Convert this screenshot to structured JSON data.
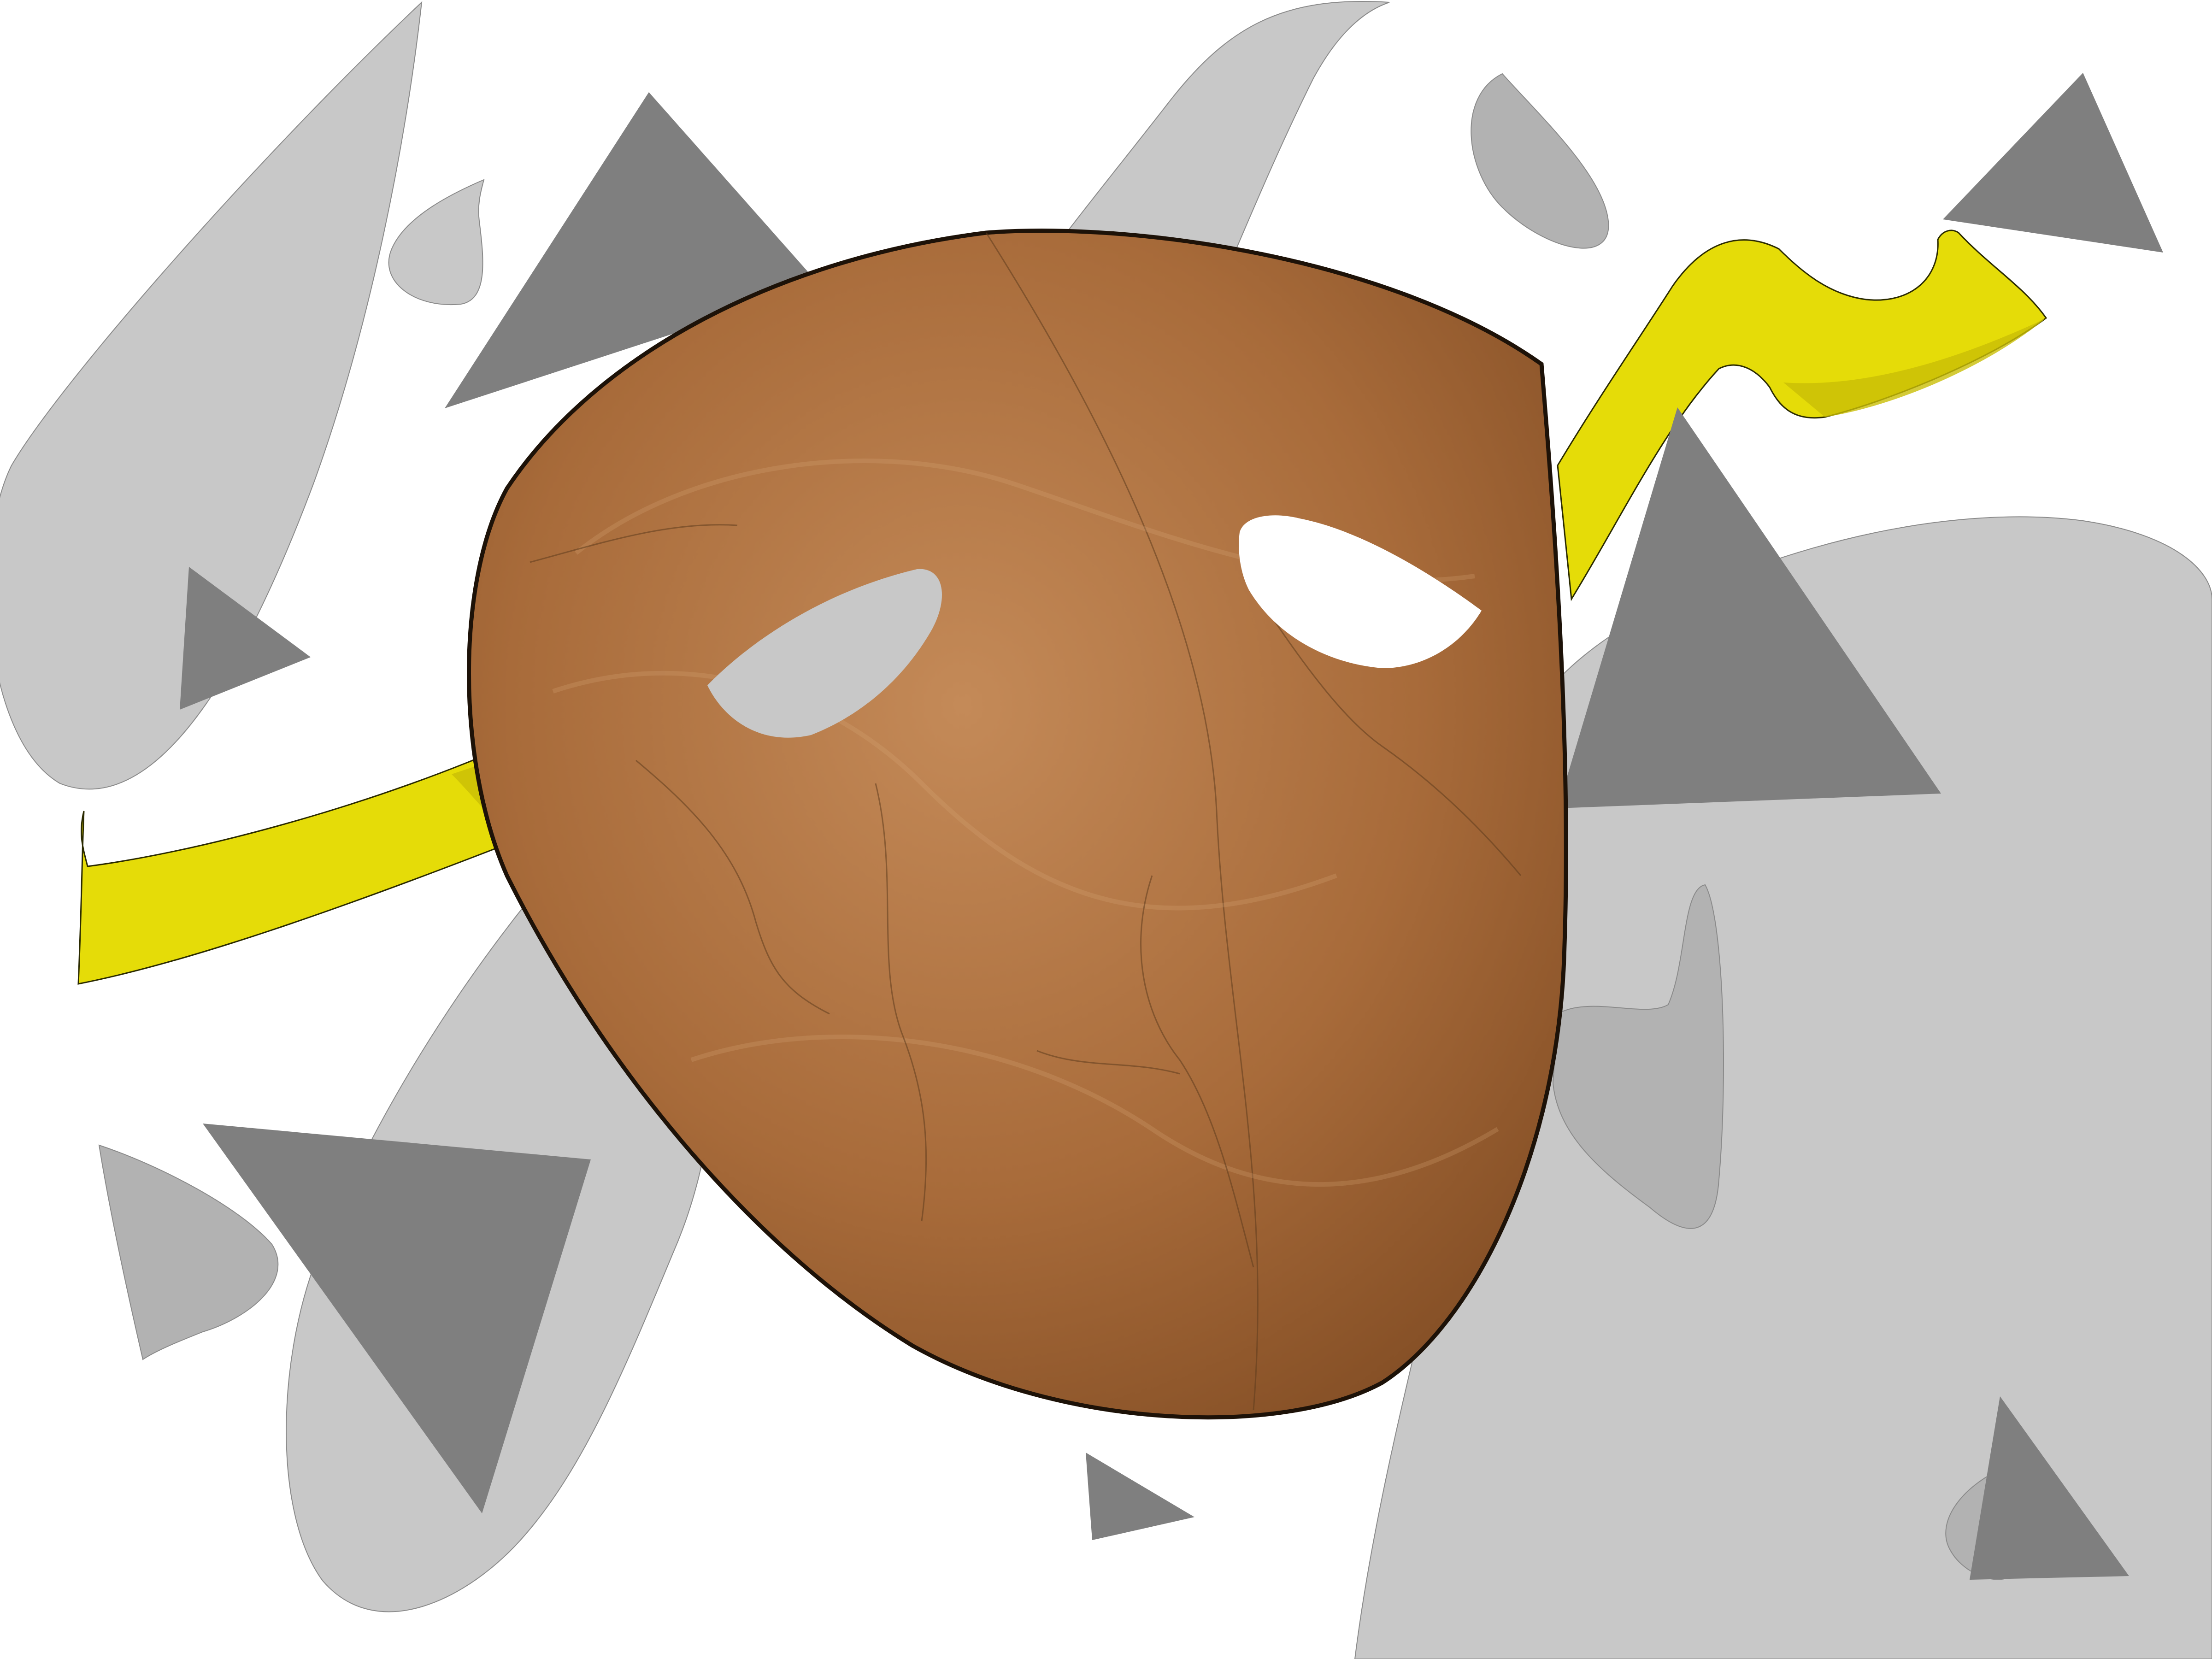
{
  "artwork": {
    "subject": "",
    "colors": {
      "background": "#ffffff",
      "light_shape": "#c8c8c8",
      "mid_shape": "#b2b2b2",
      "triangle": "#7f7f7f",
      "ribbon": "#e5dc08",
      "wood_light": "#c48a58",
      "wood_mid": "#a86b3a",
      "wood_dark": "#7e4a22",
      "mask_outline": "#1d1208",
      "left_eye_fill": "#c8c8c8",
      "right_eye_fill": "#ffffff"
    }
  }
}
